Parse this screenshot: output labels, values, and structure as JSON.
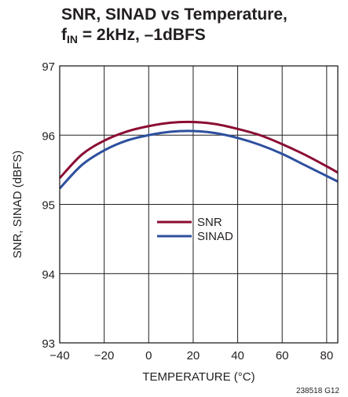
{
  "chart_data": {
    "type": "line",
    "title": {
      "line1": "SNR, SINAD vs Temperature,",
      "line2_prefix": "f",
      "line2_sub": "IN",
      "line2_rest": " = 2kHz, –1dBFS"
    },
    "xlabel": "TEMPERATURE (°C)",
    "ylabel": "SNR, SINAD (dBFS)",
    "xlim": [
      -40,
      85
    ],
    "ylim": [
      93,
      97
    ],
    "x_ticks": [
      -40,
      -20,
      0,
      20,
      40,
      60,
      80
    ],
    "x_tick_labels": [
      "−40",
      "−20",
      "0",
      "20",
      "40",
      "60",
      "80"
    ],
    "y_ticks": [
      93,
      94,
      95,
      96,
      97
    ],
    "y_tick_labels": [
      "93",
      "94",
      "95",
      "96",
      "97"
    ],
    "grid": true,
    "legend_position": "center",
    "series": [
      {
        "name": "SNR",
        "color": "#8b0d33",
        "x": [
          -40,
          -30,
          -20,
          -10,
          0,
          10,
          20,
          30,
          40,
          50,
          60,
          70,
          80,
          85
        ],
        "y": [
          95.38,
          95.72,
          95.92,
          96.05,
          96.13,
          96.18,
          96.19,
          96.16,
          96.09,
          96.0,
          95.87,
          95.72,
          95.55,
          95.46
        ]
      },
      {
        "name": "SINAD",
        "color": "#2d4f9e",
        "x": [
          -40,
          -30,
          -20,
          -10,
          0,
          10,
          20,
          30,
          40,
          50,
          60,
          70,
          80,
          85
        ],
        "y": [
          95.23,
          95.57,
          95.78,
          95.92,
          96.0,
          96.05,
          96.06,
          96.03,
          95.96,
          95.86,
          95.73,
          95.57,
          95.41,
          95.33
        ]
      }
    ],
    "footnote": "238518 G12"
  }
}
